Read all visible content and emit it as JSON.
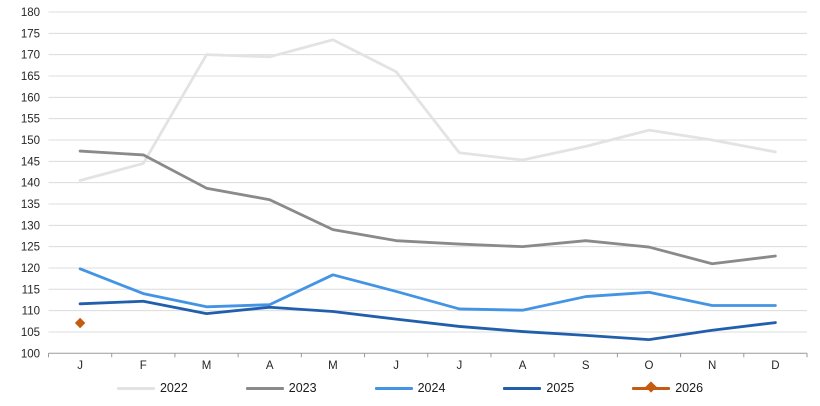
{
  "chart_data": {
    "type": "line",
    "title": "",
    "xlabel": "",
    "ylabel": "",
    "categories": [
      "J",
      "F",
      "M",
      "A",
      "M",
      "J",
      "J",
      "A",
      "S",
      "O",
      "N",
      "D"
    ],
    "y_axis": {
      "min": 100,
      "max": 180,
      "step": 5,
      "tick_labels": [
        "100",
        "105",
        "110",
        "115",
        "120",
        "125",
        "130",
        "135",
        "140",
        "145",
        "150",
        "155",
        "160",
        "165",
        "170",
        "175",
        "180"
      ]
    },
    "grid": true,
    "legend_position": "bottom",
    "series": [
      {
        "name": "2022",
        "color": "#e3e3e3",
        "marker": "none",
        "values": [
          140.5,
          144.5,
          170,
          169.5,
          173.5,
          166,
          147,
          145.3,
          148.5,
          152.3,
          150,
          147.2
        ]
      },
      {
        "name": "2023",
        "color": "#8a8a8a",
        "marker": "none",
        "values": [
          147.4,
          146.5,
          138.7,
          136,
          129,
          126.4,
          125.6,
          125,
          126.4,
          124.9,
          121,
          122.8
        ]
      },
      {
        "name": "2024",
        "color": "#4394e4",
        "marker": "none",
        "values": [
          119.8,
          114,
          110.9,
          111.4,
          118.4,
          114.5,
          110.4,
          110.1,
          113.3,
          114.3,
          111.2,
          111.2
        ]
      },
      {
        "name": "2025",
        "color": "#215fac",
        "marker": "none",
        "values": [
          111.6,
          112.2,
          109.3,
          110.8,
          109.8,
          108,
          106.3,
          105.1,
          104.2,
          103.2,
          105.4,
          107.2
        ]
      },
      {
        "name": "2026",
        "color": "#c55a11",
        "marker": "diamond",
        "values": [
          107.1,
          null,
          null,
          null,
          null,
          null,
          null,
          null,
          null,
          null,
          null,
          null
        ]
      }
    ],
    "style": {
      "gridline_color": "#dcdcdc",
      "axis_line_color": "#9a9a9a",
      "tick_color": "#9a9a9a",
      "label_color": "#262626",
      "background": "#ffffff"
    }
  }
}
